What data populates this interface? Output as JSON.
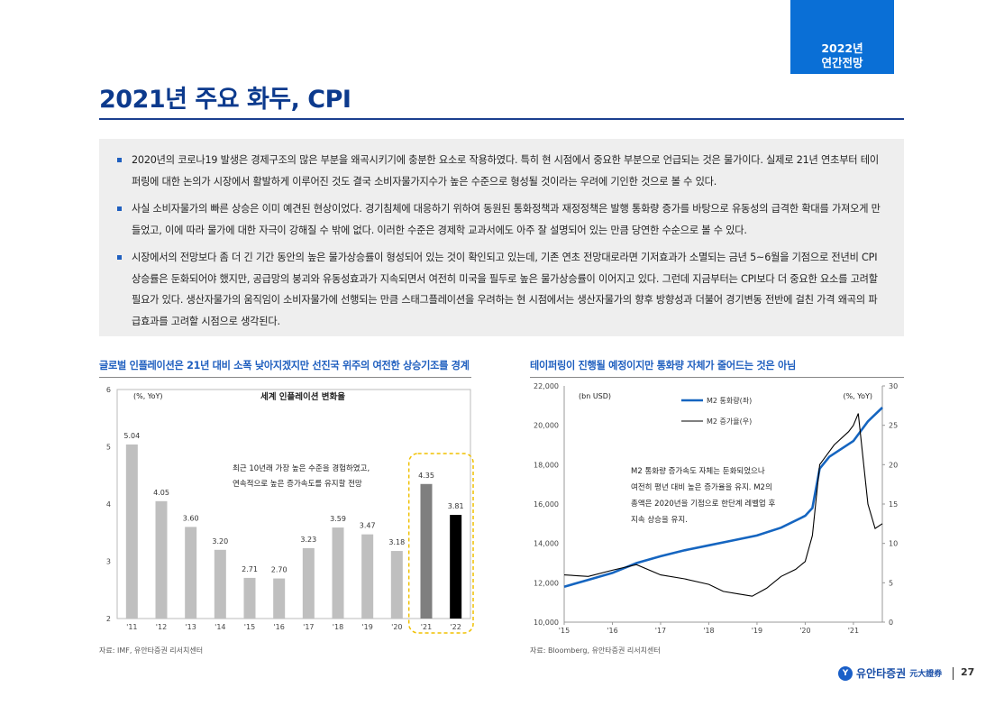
{
  "header": {
    "tag_line1": "2022년",
    "tag_line2": "연간전망",
    "title": "2021년 주요 화두, CPI"
  },
  "summary": {
    "bullets": [
      "2020년의 코로나19 발생은 경제구조의 많은 부분을 왜곡시키기에 충분한 요소로 작용하였다. 특히 현 시점에서 중요한 부분으로 언급되는 것은 물가이다. 실제로 21년 연초부터 테이퍼링에 대한 논의가 시장에서 활발하게 이루어진 것도 결국 소비자물가지수가 높은 수준으로 형성될 것이라는 우려에 기인한 것으로 볼 수 있다.",
      "사실 소비자물가의 빠른 상승은 이미 예견된 현상이었다. 경기침체에 대응하기 위하여 동원된 통화정책과 재정정책은 발행 통화량 증가를 바탕으로 유동성의 급격한 확대를 가져오게 만들었고, 이에 따라 물가에 대한 자극이 강해질 수 밖에 없다. 이러한 수준은 경제학 교과서에도 아주 잘 설명되어 있는 만큼 당연한 수순으로 볼 수 있다.",
      "시장에서의 전망보다 좀 더 긴 기간 동안의 높은 물가상승률이 형성되어 있는 것이 확인되고 있는데, 기존 연초 전망대로라면 기저효과가 소멸되는 금년 5~6월을 기점으로 전년비 CPI상승률은 둔화되어야 했지만, 공급망의 붕괴와 유동성효과가 지속되면서 여전히 미국을 필두로 높은 물가상승률이 이어지고 있다. 그런데 지금부터는 CPI보다 더 중요한 요소를 고려할 필요가 있다. 생산자물가의 움직임이 소비자물가에 선행되는 만큼 스태그플레이션을 우려하는 현 시점에서는 생산자물가의 향후 방향성과 더불어 경기변동 전반에 걸친 가격 왜곡의 파급효과를 고려할 시점으로 생각된다."
    ]
  },
  "chart_data": [
    {
      "type": "bar",
      "caption": "글로벌 인플레이션은 21년 대비 소폭 낮아지겠지만 선진국 위주의 여전한 상승기조를 경계",
      "title": "세계 인플레이션 변화율",
      "unit_label": "(%, YoY)",
      "categories": [
        "'11",
        "'12",
        "'13",
        "'14",
        "'15",
        "'16",
        "'17",
        "'18",
        "'19",
        "'20",
        "'21",
        "'22"
      ],
      "values": [
        5.04,
        4.05,
        3.6,
        3.2,
        2.71,
        2.7,
        3.23,
        3.59,
        3.47,
        3.18,
        4.35,
        3.81
      ],
      "value_labels": [
        "5.04",
        "4.05",
        "3.60",
        "3.20",
        "2.71",
        "2.70",
        "3.23",
        "3.59",
        "3.47",
        "3.18",
        "4.35",
        "3.81"
      ],
      "bar_colors": [
        "#bfbfbf",
        "#bfbfbf",
        "#bfbfbf",
        "#bfbfbf",
        "#bfbfbf",
        "#bfbfbf",
        "#bfbfbf",
        "#bfbfbf",
        "#bfbfbf",
        "#bfbfbf",
        "#7f7f7f",
        "#000000"
      ],
      "ylim": [
        2,
        6
      ],
      "yticks": [
        "2",
        "3",
        "4",
        "5",
        "6"
      ],
      "annotation_line1": "최근 10년래 가장 높은 수준을 경험하였고,",
      "annotation_line2": "연속적으로 높은 증가속도를 유지할 전망",
      "highlight_color": "#f0c000",
      "source": "자료: IMF, 유안타증권 리서치센터"
    },
    {
      "type": "line",
      "caption": "테이퍼링이 진행될 예정이지만 통화량 자체가 줄어드는 것은 아님",
      "left_unit": "(bn USD)",
      "right_unit": "(%, YoY)",
      "x_ticks": [
        "'15",
        "'16",
        "'17",
        "'18",
        "'19",
        "'20",
        "'21"
      ],
      "x_range": [
        2015,
        2021.6
      ],
      "left_ylim": [
        10000,
        22000
      ],
      "left_yticks": [
        "10,000",
        "12,000",
        "14,000",
        "16,000",
        "18,000",
        "20,000",
        "22,000"
      ],
      "right_ylim": [
        0,
        30
      ],
      "right_yticks": [
        "0",
        "5",
        "10",
        "15",
        "20",
        "25",
        "30"
      ],
      "series": [
        {
          "name": "M2 통화량(좌)",
          "axis": "left",
          "color": "#1565c0",
          "x": [
            2015.0,
            2015.5,
            2016.0,
            2016.5,
            2017.0,
            2017.5,
            2018.0,
            2018.5,
            2019.0,
            2019.5,
            2020.0,
            2020.15,
            2020.3,
            2020.5,
            2021.0,
            2021.3,
            2021.6
          ],
          "y": [
            11800,
            12150,
            12500,
            13000,
            13350,
            13650,
            13900,
            14150,
            14400,
            14800,
            15400,
            15800,
            17800,
            18400,
            19200,
            20200,
            20900
          ]
        },
        {
          "name": "M2 증가율(우)",
          "axis": "right",
          "color": "#000000",
          "x": [
            2015.0,
            2015.5,
            2016.0,
            2016.5,
            2017.0,
            2017.5,
            2018.0,
            2018.3,
            2018.6,
            2018.9,
            2019.2,
            2019.5,
            2019.8,
            2020.0,
            2020.15,
            2020.3,
            2020.6,
            2020.9,
            2021.0,
            2021.1,
            2021.3,
            2021.45,
            2021.6
          ],
          "y": [
            6.0,
            5.8,
            6.6,
            7.3,
            6.0,
            5.5,
            4.8,
            3.9,
            3.6,
            3.3,
            4.3,
            5.8,
            6.7,
            7.7,
            11.0,
            20.0,
            22.5,
            24.2,
            25.0,
            26.5,
            15.0,
            11.9,
            12.5
          ]
        }
      ],
      "annotation": [
        "M2 통화량 증가속도 자체는 둔화되었으나",
        "여전히 평년 대비 높은 증가율을 유지. M2의",
        "총액은 2020년을 기점으로 한단계 레벨업 후",
        "지속 상승을 유지."
      ],
      "source": "자료: Bloomberg, 유안타증권 리서치센터"
    }
  ],
  "footer": {
    "logo_mark": "Y",
    "logo_text": "유안타증권",
    "logo_sub": "元大證券",
    "page_number": "27"
  }
}
